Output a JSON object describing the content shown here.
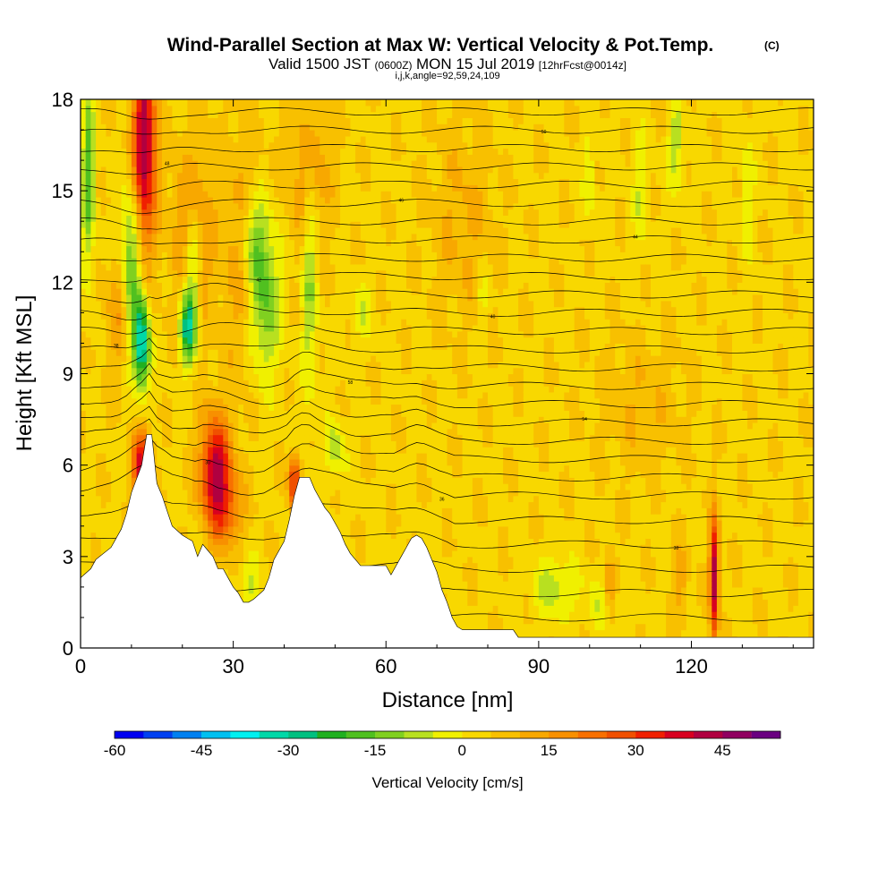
{
  "header": {
    "title": "Wind-Parallel Section at Max W: Vertical Velocity & Pot.Temp.",
    "title_tag": "(C)",
    "valid_prefix": "Valid 1500 JST",
    "valid_utc": "(0600Z)",
    "valid_date": "MON 15 Jul 2019",
    "forecast": "[12hrFcst@0014z]",
    "indices": "i,j,k,angle=92,59,24,109"
  },
  "colors": {
    "axis": "#000000",
    "background_field": "#f2e600",
    "terrain": "#ffffff",
    "contour": "#000000"
  },
  "chart_data": {
    "type": "heatmap",
    "xlabel": "Distance [nm]",
    "ylabel": "Height [Kft MSL]",
    "xlim": [
      0,
      144
    ],
    "ylim": [
      0,
      18
    ],
    "xticks": [
      0,
      30,
      60,
      90,
      120
    ],
    "xtick_labels": [
      "0",
      "30",
      "60",
      "90",
      "120"
    ],
    "yticks": [
      0,
      3,
      6,
      9,
      12,
      15,
      18
    ],
    "ytick_labels": [
      "0",
      "3",
      "6",
      "9",
      "12",
      "15",
      "18"
    ],
    "colorbar": {
      "label": "Vertical Velocity [cm/s]",
      "min": -60,
      "max": 55,
      "step": 5,
      "tick_values": [
        -60,
        -45,
        -30,
        -15,
        0,
        15,
        30,
        45
      ],
      "tick_labels": [
        "-60",
        "-45",
        "-30",
        "-15",
        "0",
        "15",
        "30",
        "45"
      ],
      "colors": [
        "#0000f0",
        "#0040f0",
        "#0080f0",
        "#00c0f0",
        "#00f0f0",
        "#00d8a8",
        "#00c080",
        "#20b020",
        "#50c020",
        "#80d020",
        "#b8e020",
        "#f0f000",
        "#f8d800",
        "#f8c000",
        "#f8a800",
        "#f89000",
        "#f87000",
        "#f05000",
        "#f02000",
        "#d80020",
        "#b00040",
        "#900060",
        "#6a0080"
      ]
    },
    "terrain_profile": {
      "x": [
        0,
        2,
        3,
        6,
        8,
        9,
        10,
        12,
        13,
        14,
        15,
        16,
        17,
        18,
        20,
        22,
        23,
        24,
        25,
        26,
        27,
        28,
        29,
        30,
        31,
        32,
        33,
        34,
        36,
        37,
        38,
        40,
        41,
        42,
        43,
        44,
        45,
        46,
        47,
        48,
        49,
        50,
        51,
        52,
        53,
        54,
        55,
        57,
        60,
        61,
        62,
        63,
        64,
        65,
        66,
        67,
        68,
        69,
        70,
        71,
        72,
        73,
        74,
        75,
        80,
        85,
        86,
        90,
        92,
        95,
        100,
        110,
        120,
        125,
        130,
        140,
        144
      ],
      "y": [
        2.3,
        2.6,
        2.9,
        3.3,
        3.9,
        4.4,
        5.1,
        6.0,
        7.0,
        7.0,
        5.4,
        5.0,
        4.5,
        4.0,
        3.7,
        3.5,
        3.0,
        3.4,
        3.2,
        3.0,
        2.6,
        2.6,
        2.3,
        2.0,
        1.8,
        1.5,
        1.5,
        1.6,
        1.9,
        2.3,
        2.9,
        3.5,
        4.2,
        5.0,
        5.6,
        5.6,
        5.6,
        5.2,
        4.9,
        4.6,
        4.4,
        4.1,
        3.8,
        3.4,
        3.1,
        2.9,
        2.7,
        2.7,
        2.7,
        2.4,
        2.7,
        3.0,
        3.3,
        3.6,
        3.7,
        3.6,
        3.3,
        2.9,
        2.5,
        1.9,
        1.5,
        1.0,
        0.7,
        0.6,
        0.6,
        0.6,
        0.35,
        0.35,
        0.35,
        0.35,
        0.35,
        0.35,
        0.35,
        0.35,
        0.35,
        0.35,
        0.35
      ]
    },
    "features": [
      {
        "x": 12.5,
        "y": 16.5,
        "dx": 2.2,
        "dy": 3.5,
        "w": 42
      },
      {
        "x": 12,
        "y": 6.0,
        "dx": 1.8,
        "dy": 1.2,
        "w": 35
      },
      {
        "x": 26.5,
        "y": 5.8,
        "dx": 3.0,
        "dy": 1.8,
        "w": 38
      },
      {
        "x": 42,
        "y": 5.4,
        "dx": 1.2,
        "dy": 0.9,
        "w": 30
      },
      {
        "x": 124.5,
        "y": 2.3,
        "dx": 0.9,
        "dy": 2.0,
        "w": 42
      },
      {
        "x": 8,
        "y": 11.0,
        "dx": 3.0,
        "dy": 2.0,
        "w": 12
      },
      {
        "x": 22,
        "y": 13.5,
        "dx": 4.0,
        "dy": 3.0,
        "w": 14
      },
      {
        "x": 32,
        "y": 13.0,
        "dx": 4.0,
        "dy": 4.0,
        "w": 10
      },
      {
        "x": 45,
        "y": 15.5,
        "dx": 4.0,
        "dy": 2.5,
        "w": 12
      },
      {
        "x": 29,
        "y": 4.5,
        "dx": 3.0,
        "dy": 1.2,
        "w": 15
      },
      {
        "x": 104,
        "y": 2.0,
        "dx": 1.2,
        "dy": 1.2,
        "w": 15
      },
      {
        "x": 118,
        "y": 2.2,
        "dx": 1.2,
        "dy": 1.2,
        "w": 10
      },
      {
        "x": 12,
        "y": 10.0,
        "dx": 1.6,
        "dy": 1.5,
        "w": -40
      },
      {
        "x": 10,
        "y": 12.5,
        "dx": 2.0,
        "dy": 2.5,
        "w": -25
      },
      {
        "x": 21,
        "y": 10.5,
        "dx": 1.6,
        "dy": 1.2,
        "w": -33
      },
      {
        "x": 22,
        "y": 12.5,
        "dx": 1.6,
        "dy": 2.0,
        "w": -20
      },
      {
        "x": 1.5,
        "y": 15.5,
        "dx": 1.2,
        "dy": 3.0,
        "w": -22
      },
      {
        "x": 36,
        "y": 11.5,
        "dx": 3.0,
        "dy": 2.5,
        "w": -22
      },
      {
        "x": 34,
        "y": 13.5,
        "dx": 2.5,
        "dy": 1.5,
        "w": -15
      },
      {
        "x": 45,
        "y": 12.5,
        "dx": 1.5,
        "dy": 4.0,
        "w": -15
      },
      {
        "x": 50,
        "y": 6.5,
        "dx": 2.0,
        "dy": 1.0,
        "w": -12
      },
      {
        "x": 33,
        "y": 2.0,
        "dx": 2.0,
        "dy": 1.0,
        "w": -10
      },
      {
        "x": 93,
        "y": 2.0,
        "dx": 4.0,
        "dy": 1.0,
        "w": -12
      },
      {
        "x": 103,
        "y": 1.5,
        "dx": 4.0,
        "dy": 1.0,
        "w": -8
      },
      {
        "x": 117,
        "y": 16.5,
        "dx": 1.5,
        "dy": 1.5,
        "w": -12
      },
      {
        "x": 110,
        "y": 15.0,
        "dx": 1.5,
        "dy": 2.0,
        "w": -8
      },
      {
        "x": 100,
        "y": 15.5,
        "dx": 1.2,
        "dy": 1.5,
        "w": -8
      },
      {
        "x": 131,
        "y": 15.0,
        "dx": 1.2,
        "dy": 2.0,
        "w": -8
      },
      {
        "x": 55,
        "y": 11.0,
        "dx": 2.0,
        "dy": 1.0,
        "w": -8
      },
      {
        "x": 79,
        "y": 11.5,
        "dx": 1.0,
        "dy": 1.0,
        "w": -8
      },
      {
        "x": 75,
        "y": 14.0,
        "dx": 6.0,
        "dy": 3.0,
        "w": 7
      },
      {
        "x": 110,
        "y": 8.0,
        "dx": 8.0,
        "dy": 2.0,
        "w": 6
      }
    ],
    "isentropes": [
      {
        "base": 1.0,
        "dist": 0.05,
        "label": ""
      },
      {
        "base": 1.8,
        "dist": 0.1,
        "label": "34"
      },
      {
        "base": 2.6,
        "dist": 0.2,
        "label": ""
      },
      {
        "base": 3.4,
        "dist": 0.35,
        "label": "38"
      },
      {
        "base": 4.2,
        "dist": 0.45,
        "label": ""
      },
      {
        "base": 5.0,
        "dist": 0.6,
        "label": "36"
      },
      {
        "base": 5.6,
        "dist": 0.7,
        "label": ""
      },
      {
        "base": 6.2,
        "dist": 0.75,
        "label": "30"
      },
      {
        "base": 6.8,
        "dist": 0.7,
        "label": ""
      },
      {
        "base": 7.4,
        "dist": 0.65,
        "label": "54"
      },
      {
        "base": 8.0,
        "dist": 0.6,
        "label": ""
      },
      {
        "base": 8.6,
        "dist": 0.55,
        "label": "58"
      },
      {
        "base": 9.2,
        "dist": 0.5,
        "label": ""
      },
      {
        "base": 9.8,
        "dist": 0.45,
        "label": "38"
      },
      {
        "base": 10.4,
        "dist": 0.4,
        "label": ""
      },
      {
        "base": 11.0,
        "dist": 0.35,
        "label": "40"
      },
      {
        "base": 11.6,
        "dist": 0.3,
        "label": ""
      },
      {
        "base": 12.2,
        "dist": 0.3,
        "label": "42"
      },
      {
        "base": 12.8,
        "dist": 0.25,
        "label": ""
      },
      {
        "base": 13.4,
        "dist": 0.25,
        "label": "44"
      },
      {
        "base": 14.0,
        "dist": 0.2,
        "label": ""
      },
      {
        "base": 14.6,
        "dist": 0.2,
        "label": "46"
      },
      {
        "base": 15.2,
        "dist": 0.15,
        "label": ""
      },
      {
        "base": 15.8,
        "dist": 0.15,
        "label": "48"
      },
      {
        "base": 16.4,
        "dist": 0.1,
        "label": ""
      },
      {
        "base": 17.0,
        "dist": 0.1,
        "label": "50"
      },
      {
        "base": 17.6,
        "dist": 0.05,
        "label": ""
      }
    ]
  }
}
